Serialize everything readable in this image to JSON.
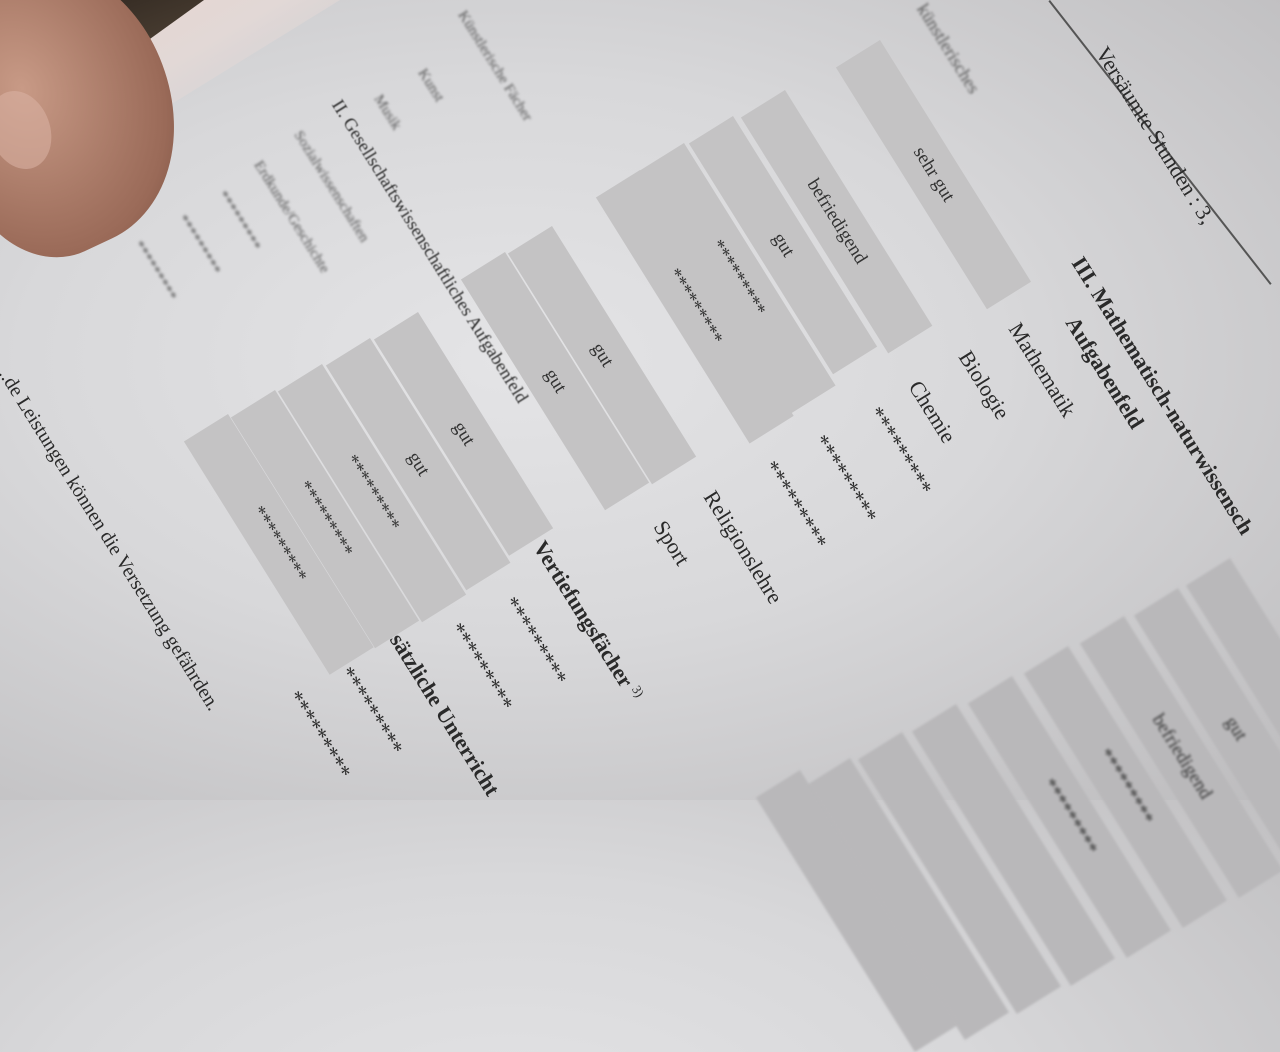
{
  "header": {
    "absent_hours": "Versäumte Stunden : 3,",
    "top_fragment": "künstlerisches"
  },
  "section3": {
    "title": "III.   Mathematisch-naturwissensch",
    "subtitle": "Aufgabenfeld",
    "subjects": [
      "Mathematik",
      "Biologie",
      "Chemie"
    ],
    "placeholders": [
      "*********",
      "*********",
      "*********"
    ]
  },
  "other": {
    "subjects": [
      "Religionslehre",
      "Sport"
    ]
  },
  "vertiefung": {
    "label": "Vertiefungsfächer",
    "footnote": "3)",
    "values": [
      "*********",
      "*********"
    ]
  },
  "zusatz": {
    "label": "Zusätzliche Unterricht",
    "values": [
      "*********",
      "*********"
    ]
  },
  "section2": {
    "title": "II.  Gesellschaftswissenschaftliches Aufgabenfeld"
  },
  "left_column": {
    "items": [
      "Künstlerische Fächer",
      "Kunst",
      "Musik",
      "Sozialwissenschaften",
      "Erdkunde/Geschichte",
      "*********",
      "*********",
      "*********"
    ]
  },
  "grades": {
    "group1": [
      "sehr gut",
      "befriedigend",
      "gut",
      "*********",
      "*********"
    ],
    "group2": [
      "gut",
      "gut"
    ],
    "group3": [
      "gut",
      "gut",
      "*********",
      "*********",
      "*********"
    ],
    "group4": [
      "",
      "gut",
      "befriedigend",
      "*********",
      "*********",
      "",
      "",
      "",
      ""
    ]
  },
  "footer": {
    "warning": "...de Leistungen können die Versetzung gefährden."
  }
}
